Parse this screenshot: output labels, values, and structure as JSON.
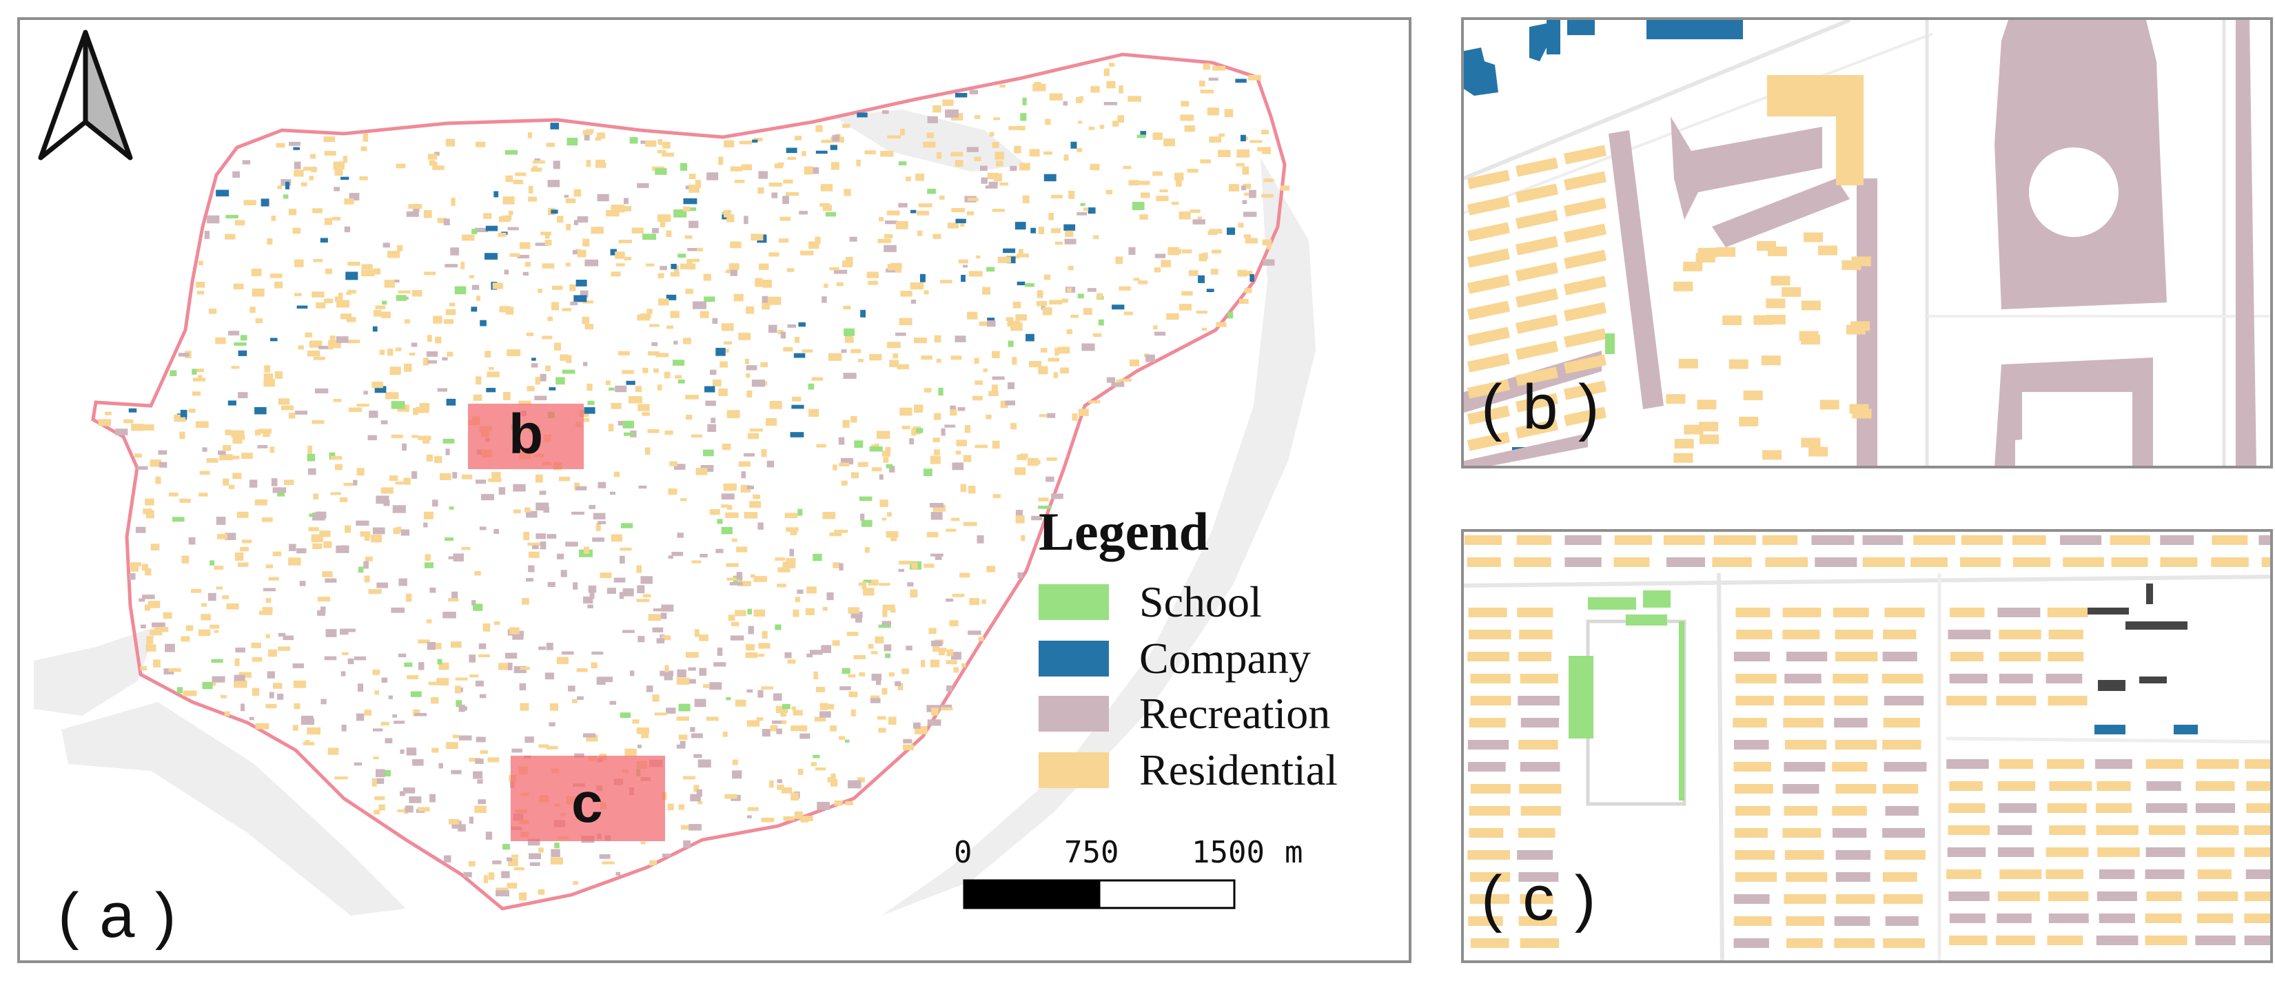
{
  "panels": {
    "a": {
      "label": "( a )"
    },
    "b": {
      "label": "( b )"
    },
    "c": {
      "label": "( c )"
    }
  },
  "insets": {
    "b": "b",
    "c": "c"
  },
  "legend": {
    "title": "Legend",
    "items": [
      {
        "label": "School",
        "color": "#98e081"
      },
      {
        "label": "Company",
        "color": "#2574a8"
      },
      {
        "label": "Recreation",
        "color": "#cdb5bd"
      },
      {
        "label": "Residential",
        "color": "#f8d592"
      }
    ]
  },
  "scale_bar": {
    "ticks": [
      "0",
      "750",
      "1500"
    ],
    "unit": "m"
  },
  "colors": {
    "boundary": "#f08a98",
    "inset_fill": "#f36e72",
    "water": "#eeeeee",
    "frame": "#8e8e8e",
    "road": "#e6e6e6"
  },
  "icons": {
    "north_arrow": "north-arrow-icon"
  }
}
